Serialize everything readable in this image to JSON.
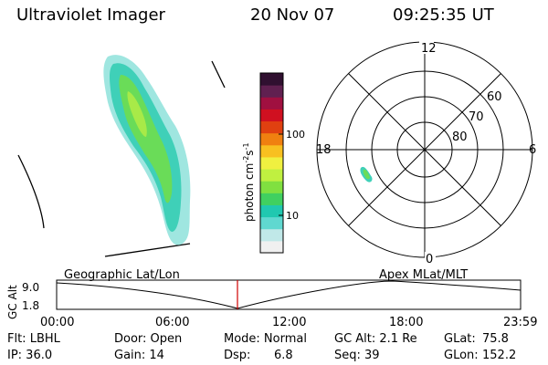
{
  "header": {
    "instrument": "Ultraviolet Imager",
    "date": "20 Nov 07",
    "time": "09:25:35 UT"
  },
  "colorbar": {
    "label": "photon cm",
    "label_exp1": "-2",
    "label_mid": "s",
    "label_exp2": "-1",
    "ticks": [
      "100",
      "10"
    ],
    "colors": [
      "#f0f0f0",
      "#c0e8e8",
      "#60d8d0",
      "#20c8b0",
      "#40d060",
      "#80e040",
      "#c0f040",
      "#f0f040",
      "#f8c020",
      "#f08010",
      "#e04010",
      "#d01020",
      "#a01040",
      "#602050",
      "#301030"
    ]
  },
  "polar": {
    "mlt_labels": [
      "12",
      "18",
      "6",
      "0"
    ],
    "mlat_labels": [
      "60",
      "70",
      "80"
    ]
  },
  "timeline": {
    "y_axis_label": "GC Alt",
    "y_ticks": [
      "9.0",
      "1.8"
    ],
    "left_title": "Geographic Lat/Lon",
    "right_title": "Apex MLat/MLT",
    "x_ticks": [
      "00:00",
      "06:00",
      "12:00",
      "18:00",
      "23:59"
    ]
  },
  "info": {
    "flt": "Flt: LBHL",
    "ip": "IP: 36.0",
    "door": "Door: Open",
    "gain": "Gain: 14",
    "mode": "Mode: Normal",
    "dsp_label": "Dsp:",
    "dsp_value": "6.8",
    "gcalt": "GC Alt: 2.1 Re",
    "seq": "Seq: 39",
    "glat_label": "GLat:",
    "glat_value": "75.8",
    "glon_label": "GLon:",
    "glon_value": "152.2"
  },
  "colors": {
    "marker": "#d00000",
    "line": "#000000"
  }
}
